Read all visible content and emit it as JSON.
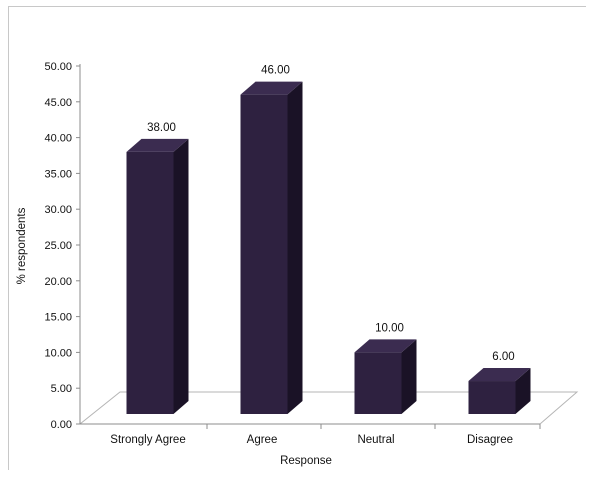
{
  "chart_data": {
    "type": "bar",
    "categories": [
      "Strongly Agree",
      "Agree",
      "Neutral",
      "Disagree"
    ],
    "values": [
      38.0,
      46.0,
      10.0,
      6.0
    ],
    "data_labels": [
      "38.00",
      "46.00",
      "10.00",
      "6.00"
    ],
    "xlabel": "Response",
    "ylabel": "% respondents",
    "ylim": [
      0,
      50
    ],
    "yticks": [
      "0.00",
      "5.00",
      "10.00",
      "15.00",
      "20.00",
      "25.00",
      "30.00",
      "35.00",
      "40.00",
      "45.00",
      "50.00"
    ],
    "grid": false,
    "legend": "none",
    "style": "3d-column",
    "colors": {
      "front": "#2e2140",
      "side": "#1a1226",
      "top": "#3b2c50",
      "floor": "#b5b5b5"
    }
  }
}
